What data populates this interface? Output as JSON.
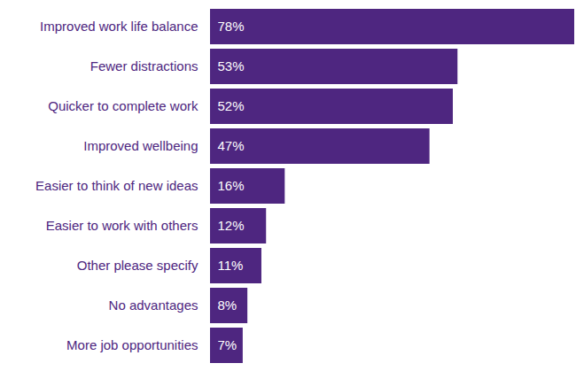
{
  "chart_data": {
    "type": "bar",
    "orientation": "horizontal",
    "categories": [
      "Improved work life balance",
      "Fewer distractions",
      "Quicker to complete work",
      "Improved wellbeing",
      "Easier to think of new ideas",
      "Easier to work with others",
      "Other please specify",
      "No advantages",
      "More job opportunities"
    ],
    "values": [
      78,
      53,
      52,
      47,
      16,
      12,
      11,
      8,
      7
    ],
    "value_labels": [
      "78%",
      "53%",
      "52%",
      "47%",
      "16%",
      "12%",
      "11%",
      "8%",
      "7%"
    ],
    "color": "#4e2680",
    "data_labels": true,
    "tick_labels": "y",
    "grid": false
  }
}
